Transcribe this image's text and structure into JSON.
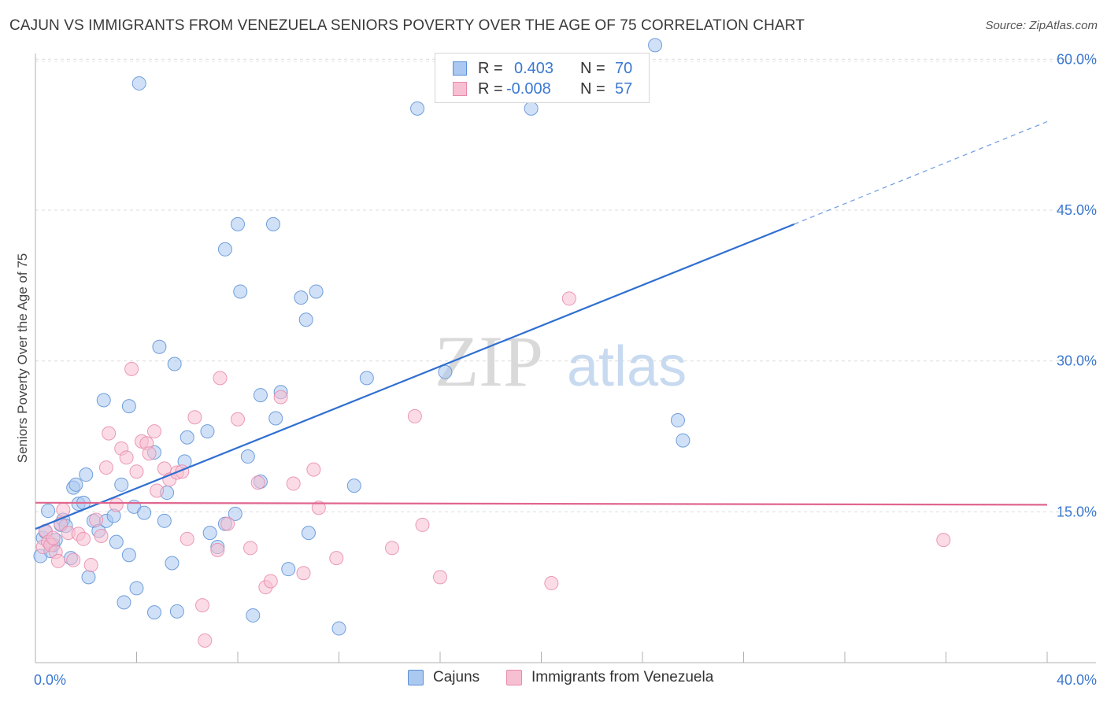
{
  "header": {
    "title": "CAJUN VS IMMIGRANTS FROM VENEZUELA SENIORS POVERTY OVER THE AGE OF 75 CORRELATION CHART",
    "source": "Source: ZipAtlas.com"
  },
  "legend": {
    "rows": [
      {
        "r_label": "R =",
        "r_value": "0.403",
        "n_label": "N =",
        "n_value": "70"
      },
      {
        "r_label": "R =",
        "r_value": "-0.008",
        "n_label": "N =",
        "n_value": "57"
      }
    ]
  },
  "bottom_legend": [
    "Cajuns",
    "Immigrants from Venezuela"
  ],
  "watermark": {
    "zip": "ZIP",
    "atlas": "atlas"
  },
  "colors": {
    "cajun_fill": "#aac8f0",
    "cajun_stroke": "#5b8fd6",
    "cajun_line": "#2f6fd1",
    "venez_fill": "#f7bfd2",
    "venez_stroke": "#e88aaa",
    "venez_line": "#e0668e",
    "axis_text": "#3b78d0"
  },
  "chart_data": {
    "type": "scatter",
    "title": "CAJUN VS IMMIGRANTS FROM VENEZUELA SENIORS POVERTY OVER THE AGE OF 75 CORRELATION CHART",
    "xlabel": "",
    "ylabel": "Seniors Poverty Over the Age of 75",
    "xlim": [
      0,
      40
    ],
    "ylim": [
      0,
      60
    ],
    "x_tick_labels": [
      "0.0%",
      "40.0%"
    ],
    "y_ticks": [
      15,
      30,
      45,
      60
    ],
    "y_tick_labels": [
      "15.0%",
      "30.0%",
      "45.0%",
      "60.0%"
    ],
    "grid": true,
    "series": [
      {
        "name": "Cajuns",
        "points": [
          [
            0.2,
            10.6
          ],
          [
            0.3,
            12.4
          ],
          [
            0.4,
            13.0
          ],
          [
            0.5,
            15.1
          ],
          [
            0.6,
            11.1
          ],
          [
            0.7,
            11.7
          ],
          [
            0.8,
            12.2
          ],
          [
            1.0,
            13.7
          ],
          [
            1.1,
            14.2
          ],
          [
            1.2,
            13.6
          ],
          [
            1.4,
            10.4
          ],
          [
            1.5,
            17.4
          ],
          [
            1.6,
            17.7
          ],
          [
            1.7,
            15.8
          ],
          [
            1.9,
            15.9
          ],
          [
            2.0,
            18.7
          ],
          [
            2.1,
            8.5
          ],
          [
            2.3,
            14.1
          ],
          [
            2.5,
            13.1
          ],
          [
            2.7,
            26.1
          ],
          [
            2.8,
            14.1
          ],
          [
            3.1,
            14.6
          ],
          [
            3.2,
            12.0
          ],
          [
            3.4,
            17.7
          ],
          [
            3.5,
            6.0
          ],
          [
            3.7,
            25.5
          ],
          [
            3.7,
            10.7
          ],
          [
            3.9,
            15.5
          ],
          [
            4.0,
            7.4
          ],
          [
            4.1,
            57.6
          ],
          [
            4.3,
            14.9
          ],
          [
            4.7,
            20.9
          ],
          [
            4.7,
            5.0
          ],
          [
            4.9,
            31.4
          ],
          [
            5.1,
            14.1
          ],
          [
            5.2,
            16.9
          ],
          [
            5.4,
            9.9
          ],
          [
            5.5,
            29.7
          ],
          [
            5.6,
            5.1
          ],
          [
            5.9,
            20.0
          ],
          [
            6.0,
            22.4
          ],
          [
            6.8,
            23.0
          ],
          [
            6.9,
            12.9
          ],
          [
            7.2,
            11.5
          ],
          [
            7.5,
            13.8
          ],
          [
            7.5,
            41.1
          ],
          [
            7.9,
            14.8
          ],
          [
            8.0,
            43.6
          ],
          [
            8.1,
            36.9
          ],
          [
            8.4,
            20.5
          ],
          [
            8.6,
            4.7
          ],
          [
            8.9,
            26.6
          ],
          [
            8.9,
            18.0
          ],
          [
            9.4,
            43.6
          ],
          [
            9.5,
            24.3
          ],
          [
            9.7,
            26.9
          ],
          [
            10.0,
            9.3
          ],
          [
            10.5,
            36.3
          ],
          [
            10.7,
            34.1
          ],
          [
            10.8,
            12.9
          ],
          [
            11.1,
            36.9
          ],
          [
            12.0,
            3.4
          ],
          [
            12.6,
            17.6
          ],
          [
            13.1,
            28.3
          ],
          [
            15.1,
            55.1
          ],
          [
            16.2,
            28.9
          ],
          [
            19.6,
            55.1
          ],
          [
            24.5,
            61.4
          ],
          [
            25.4,
            24.1
          ],
          [
            25.6,
            22.1
          ]
        ]
      },
      {
        "name": "Immigrants from Venezuela",
        "points": [
          [
            0.3,
            11.5
          ],
          [
            0.4,
            13.1
          ],
          [
            0.5,
            12.0
          ],
          [
            0.6,
            11.7
          ],
          [
            0.7,
            12.4
          ],
          [
            0.8,
            11.0
          ],
          [
            0.9,
            10.1
          ],
          [
            1.0,
            13.8
          ],
          [
            1.1,
            15.2
          ],
          [
            1.3,
            12.9
          ],
          [
            1.5,
            10.2
          ],
          [
            1.7,
            12.8
          ],
          [
            1.9,
            12.3
          ],
          [
            2.2,
            9.7
          ],
          [
            2.4,
            14.2
          ],
          [
            2.6,
            12.6
          ],
          [
            2.8,
            19.4
          ],
          [
            2.9,
            22.8
          ],
          [
            3.2,
            15.7
          ],
          [
            3.4,
            21.3
          ],
          [
            3.6,
            20.4
          ],
          [
            3.8,
            29.2
          ],
          [
            4.0,
            19.0
          ],
          [
            4.2,
            22.0
          ],
          [
            4.4,
            21.8
          ],
          [
            4.5,
            20.8
          ],
          [
            4.7,
            23.0
          ],
          [
            4.8,
            17.1
          ],
          [
            5.1,
            19.3
          ],
          [
            5.3,
            18.2
          ],
          [
            5.6,
            18.9
          ],
          [
            5.8,
            19.0
          ],
          [
            6.0,
            12.3
          ],
          [
            6.3,
            24.4
          ],
          [
            6.6,
            5.7
          ],
          [
            6.7,
            2.2
          ],
          [
            7.2,
            11.2
          ],
          [
            7.3,
            28.3
          ],
          [
            7.6,
            13.8
          ],
          [
            8.0,
            24.2
          ],
          [
            8.5,
            11.4
          ],
          [
            8.8,
            17.9
          ],
          [
            9.1,
            7.5
          ],
          [
            9.3,
            8.1
          ],
          [
            9.7,
            26.4
          ],
          [
            10.2,
            17.8
          ],
          [
            10.6,
            8.9
          ],
          [
            11.0,
            19.2
          ],
          [
            11.2,
            15.4
          ],
          [
            11.9,
            10.4
          ],
          [
            14.1,
            11.4
          ],
          [
            15.0,
            24.5
          ],
          [
            15.3,
            13.7
          ],
          [
            16.0,
            8.5
          ],
          [
            20.4,
            7.9
          ],
          [
            21.1,
            36.2
          ],
          [
            35.9,
            12.2
          ]
        ]
      }
    ],
    "trend_lines": [
      {
        "name": "Cajuns",
        "x0": 0,
        "y0": 13.3,
        "x1": 30,
        "y1": 43.6,
        "dash_to_x": 40,
        "dash_to_y": 53.8
      },
      {
        "name": "Immigrants from Venezuela",
        "x0": 0,
        "y0": 15.9,
        "x1": 40,
        "y1": 15.7
      }
    ]
  }
}
